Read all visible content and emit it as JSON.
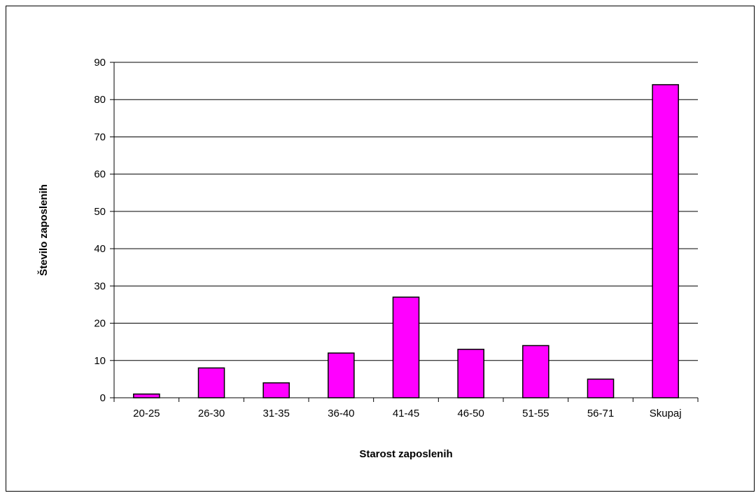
{
  "chart_data": {
    "type": "bar",
    "title": "",
    "xlabel": "Starost zaposlenih",
    "ylabel": "Število zaposlenih",
    "categories": [
      "20-25",
      "26-30",
      "31-35",
      "36-40",
      "41-45",
      "46-50",
      "51-55",
      "56-71",
      "Skupaj"
    ],
    "values": [
      1,
      8,
      4,
      12,
      27,
      13,
      14,
      5,
      84
    ],
    "ylim": [
      0,
      90
    ],
    "yticks": [
      "0",
      "10",
      "20",
      "30",
      "40",
      "50",
      "60",
      "70",
      "80",
      "90"
    ],
    "grid": "horizontal",
    "legend": "none",
    "colors": {
      "bar_fill": "#ff00ff",
      "bar_stroke": "#000000",
      "grid": "#000000"
    }
  }
}
